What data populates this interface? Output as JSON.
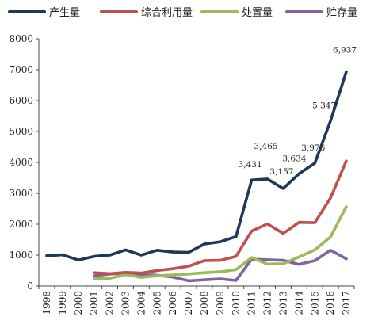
{
  "chart_data": {
    "type": "line",
    "title": "",
    "xlabel": "",
    "ylabel": "",
    "ylim": [
      0,
      8000
    ],
    "yticks": [
      0,
      1000,
      2000,
      3000,
      4000,
      5000,
      6000,
      7000,
      8000
    ],
    "grid": false,
    "legend_position": "top",
    "categories": [
      "1998",
      "1999",
      "2000",
      "2001",
      "2002",
      "2003",
      "2004",
      "2005",
      "2006",
      "2007",
      "2008",
      "2009",
      "2010",
      "2011",
      "2012",
      "2013",
      "2014",
      "2015",
      "2016",
      "2017"
    ],
    "series": [
      {
        "name": "产生量",
        "color": "#1f3858",
        "values": [
          980,
          1010,
          840,
          960,
          1000,
          1170,
          1000,
          1160,
          1100,
          1090,
          1360,
          1430,
          1600,
          3431,
          3465,
          3157,
          3634,
          3976,
          5347,
          6937
        ]
      },
      {
        "name": "综合利用量",
        "color": "#c0504d",
        "values": [
          null,
          null,
          null,
          430,
          400,
          440,
          420,
          500,
          560,
          640,
          820,
          830,
          960,
          1780,
          2010,
          1700,
          2060,
          2050,
          2850,
          4050
        ]
      },
      {
        "name": "处置量",
        "color": "#9bbb59",
        "values": [
          null,
          null,
          null,
          240,
          250,
          370,
          280,
          330,
          360,
          390,
          430,
          460,
          530,
          920,
          710,
          720,
          940,
          1170,
          1590,
          2570
        ]
      },
      {
        "name": "贮存量",
        "color": "#8064a2",
        "values": [
          null,
          null,
          null,
          330,
          390,
          420,
          370,
          350,
          290,
          170,
          200,
          230,
          180,
          870,
          850,
          830,
          700,
          820,
          1160,
          880
        ]
      }
    ],
    "annotations": [
      {
        "series": 0,
        "index": 13,
        "text": "3,431"
      },
      {
        "series": 0,
        "index": 14,
        "text": "3,465"
      },
      {
        "series": 0,
        "index": 15,
        "text": "3,157"
      },
      {
        "series": 0,
        "index": 16,
        "text": "3,634"
      },
      {
        "series": 0,
        "index": 17,
        "text": "3,976"
      },
      {
        "series": 0,
        "index": 18,
        "text": "5,347"
      },
      {
        "series": 0,
        "index": 19,
        "text": "6,937"
      }
    ]
  }
}
